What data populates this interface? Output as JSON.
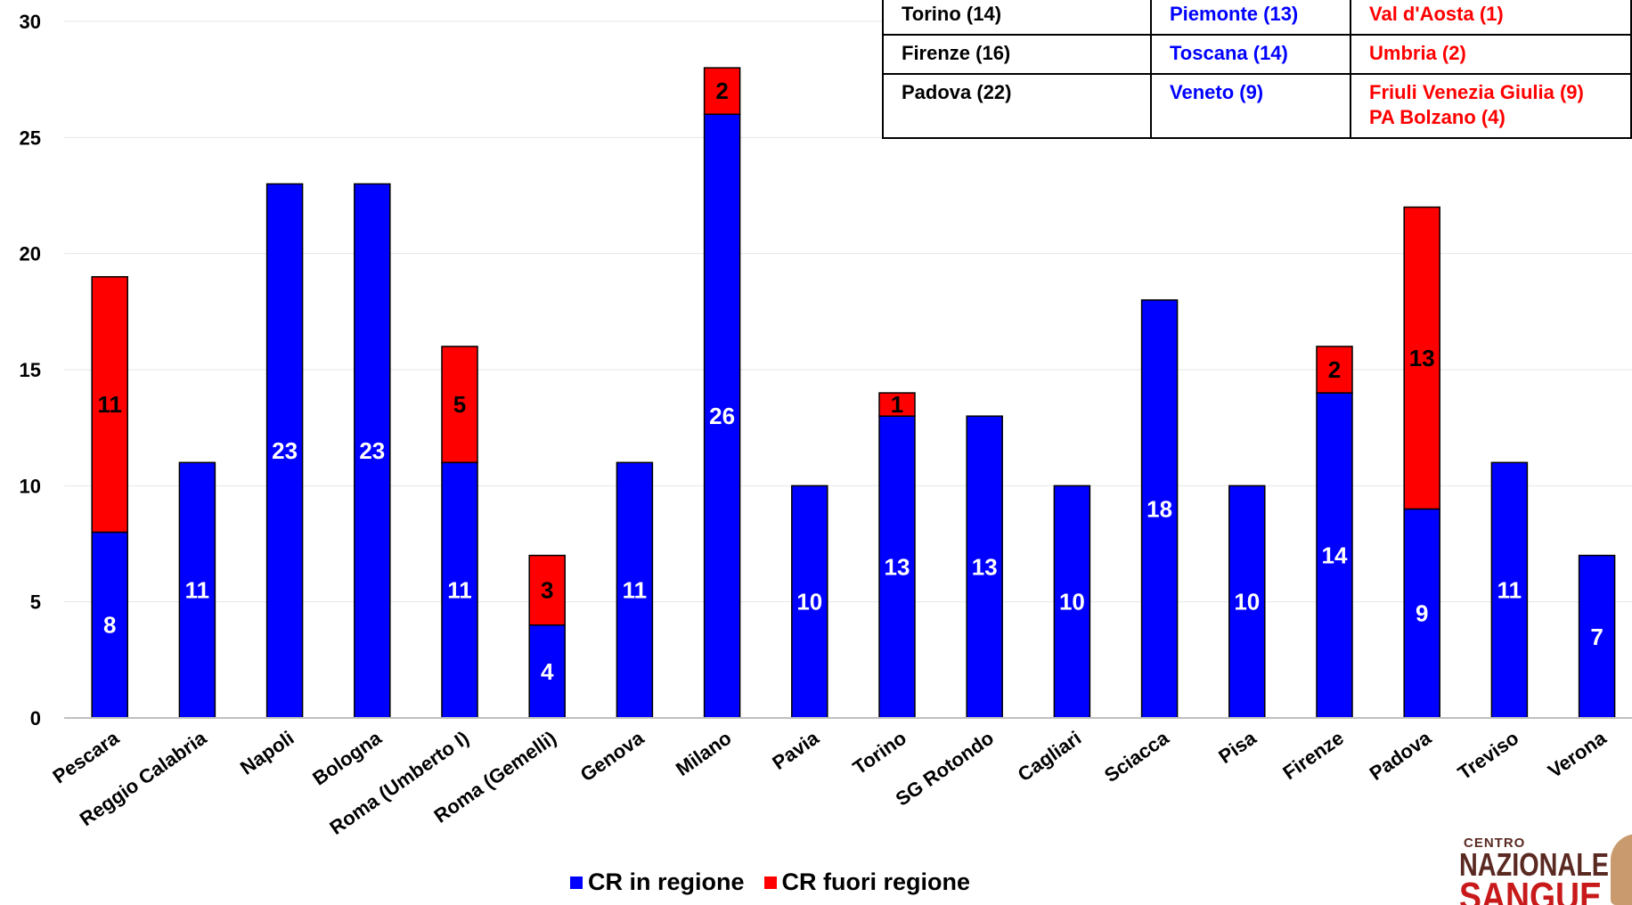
{
  "chart_data": {
    "type": "bar",
    "stacked": true,
    "categories": [
      "Pescara",
      "Reggio Calabria",
      "Napoli",
      "Bologna",
      "Roma (Umberto I)",
      "Roma (Gemelli)",
      "Genova",
      "Milano",
      "Pavia",
      "Torino",
      "SG Rotondo",
      "Cagliari",
      "Sciacca",
      "Pisa",
      "Firenze",
      "Padova",
      "Treviso",
      "Verona"
    ],
    "series": [
      {
        "name": "CR in regione",
        "color": "#0000ff",
        "values": [
          8,
          11,
          23,
          23,
          11,
          4,
          11,
          26,
          10,
          13,
          13,
          10,
          18,
          10,
          14,
          9,
          11,
          7
        ]
      },
      {
        "name": "CR fuori regione",
        "color": "#ff0000",
        "values": [
          11,
          0,
          0,
          0,
          5,
          3,
          0,
          2,
          0,
          1,
          0,
          0,
          0,
          0,
          2,
          13,
          0,
          0
        ]
      }
    ],
    "ylim": [
      0,
      30
    ],
    "yticks": [
      0,
      5,
      10,
      15,
      20,
      25,
      30
    ],
    "legend_position": "bottom",
    "grid": true
  },
  "table": {
    "rows": [
      {
        "city": "",
        "region": "",
        "other": []
      },
      {
        "city": "Torino (14)",
        "region": "Piemonte (13)",
        "other": [
          "Val d'Aosta (1)"
        ]
      },
      {
        "city": "Firenze (16)",
        "region": "Toscana (14)",
        "other": [
          "Umbria (2)"
        ]
      },
      {
        "city": "Padova (22)",
        "region": "Veneto (9)",
        "other": [
          "Friuli Venezia Giulia (9)",
          "PA Bolzano (4)"
        ]
      }
    ]
  },
  "logo": {
    "line1": "CENTRO",
    "line2": "NAZIONALE",
    "line3": "SANGUE"
  },
  "colors": {
    "in_region": "#0000ff",
    "out_region": "#ff0000"
  }
}
